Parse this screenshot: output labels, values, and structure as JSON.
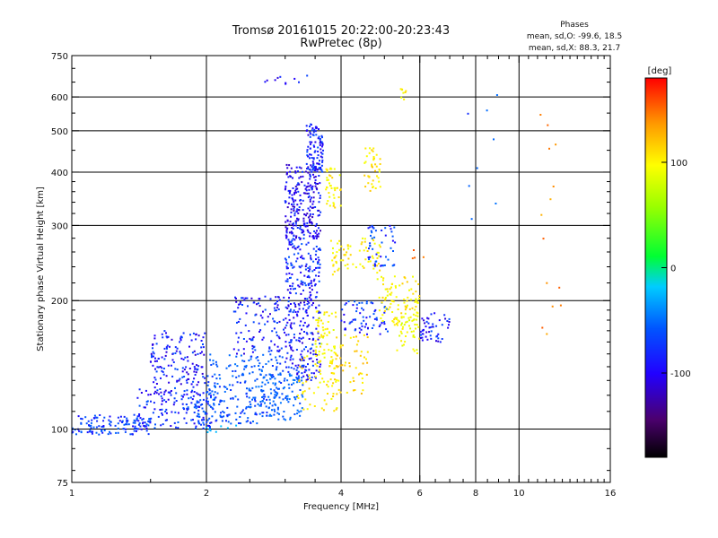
{
  "chart_data": {
    "type": "scatter",
    "title_line1": "Tromsø 20161015 20:22:00-20:23:43",
    "title_line2": "RwPretec (8p)",
    "xlabel": "Frequency [MHz]",
    "ylabel": "Stationary phase Virtual Height [km]",
    "x_scale": "log",
    "y_scale": "log",
    "xlim": [
      1,
      16
    ],
    "ylim": [
      75,
      750
    ],
    "x_ticks": [
      1,
      2,
      4,
      6,
      8,
      10,
      16
    ],
    "x_tick_labels": [
      "1",
      "2",
      "4",
      "6",
      "8",
      "10",
      "16"
    ],
    "x_major_grid": [
      2,
      4,
      6,
      8,
      10
    ],
    "y_ticks": [
      75,
      100,
      200,
      300,
      400,
      500,
      600,
      750
    ],
    "y_tick_labels": [
      "75",
      "100",
      "200",
      "300",
      "400",
      "500",
      "600",
      "750"
    ],
    "y_major_grid": [
      100,
      200,
      300,
      400,
      500,
      600
    ],
    "grid": true,
    "phases_legend": {
      "title": "Phases",
      "line1": "mean, sd,O: -99.6, 18.5",
      "line2": "mean, sd,X:  88.3, 21.7"
    },
    "colorbar": {
      "label": "[deg]",
      "range": [
        -180,
        180
      ],
      "ticks": [
        100,
        0,
        -100
      ],
      "tick_labels": [
        "100",
        "0",
        "-100"
      ]
    },
    "clusters": [
      {
        "x": [
          1.0,
          1.5
        ],
        "y": [
          97,
          108
        ],
        "phase": -100,
        "n": 130
      },
      {
        "x": [
          1.4,
          2.1
        ],
        "y": [
          100,
          125
        ],
        "phase": -105,
        "n": 130
      },
      {
        "x": [
          1.5,
          2.0
        ],
        "y": [
          120,
          170
        ],
        "phase": -110,
        "n": 160
      },
      {
        "x": [
          1.8,
          2.9
        ],
        "y": [
          103,
          118
        ],
        "phase": -95,
        "n": 120
      },
      {
        "x": [
          2.0,
          3.0
        ],
        "y": [
          118,
          150
        ],
        "phase": -90,
        "n": 140
      },
      {
        "x": [
          2.3,
          3.1
        ],
        "y": [
          150,
          205
        ],
        "phase": -110,
        "n": 120
      },
      {
        "x": [
          2.6,
          3.3
        ],
        "y": [
          105,
          135
        ],
        "phase": -85,
        "n": 100
      },
      {
        "x": [
          3.0,
          3.6
        ],
        "y": [
          130,
          200
        ],
        "phase": -110,
        "n": 170
      },
      {
        "x": [
          3.0,
          3.6
        ],
        "y": [
          200,
          280
        ],
        "phase": -108,
        "n": 150
      },
      {
        "x": [
          3.0,
          3.6
        ],
        "y": [
          280,
          420
        ],
        "phase": -115,
        "n": 240
      },
      {
        "x": [
          3.35,
          3.65
        ],
        "y": [
          400,
          520
        ],
        "phase": -108,
        "n": 100
      },
      {
        "x": [
          3.5,
          3.9
        ],
        "y": [
          140,
          190
        ],
        "phase": 95,
        "n": 60
      },
      {
        "x": [
          3.2,
          4.0
        ],
        "y": [
          110,
          150
        ],
        "phase": 100,
        "n": 60
      },
      {
        "x": [
          3.8,
          4.6
        ],
        "y": [
          120,
          170
        ],
        "phase": 110,
        "n": 60
      },
      {
        "x": [
          3.8,
          4.9
        ],
        "y": [
          230,
          280
        ],
        "phase": 100,
        "n": 70
      },
      {
        "x": [
          3.7,
          4.0
        ],
        "y": [
          330,
          410
        ],
        "phase": 100,
        "n": 40
      },
      {
        "x": [
          4.5,
          4.9
        ],
        "y": [
          360,
          460
        ],
        "phase": 105,
        "n": 40
      },
      {
        "x": [
          4.0,
          5.1
        ],
        "y": [
          165,
          200
        ],
        "phase": -105,
        "n": 70
      },
      {
        "x": [
          4.6,
          5.3
        ],
        "y": [
          240,
          300
        ],
        "phase": -100,
        "n": 50
      },
      {
        "x": [
          4.8,
          6.0
        ],
        "y": [
          175,
          230
        ],
        "phase": 100,
        "n": 100
      },
      {
        "x": [
          5.3,
          6.0
        ],
        "y": [
          150,
          185
        ],
        "phase": 90,
        "n": 40
      },
      {
        "x": [
          6.0,
          7.0
        ],
        "y": [
          160,
          190
        ],
        "phase": -110,
        "n": 50
      },
      {
        "x": [
          2.7,
          3.4
        ],
        "y": [
          640,
          680
        ],
        "phase": -110,
        "n": 10
      },
      {
        "x": [
          5.4,
          5.6
        ],
        "y": [
          590,
          630
        ],
        "phase": 100,
        "n": 8
      },
      {
        "x": [
          11.0,
          12.5
        ],
        "y": [
          160,
          600
        ],
        "phase": 140,
        "n": 14
      },
      {
        "x": [
          7.6,
          9.0
        ],
        "y": [
          300,
          620
        ],
        "phase": -90,
        "n": 8
      },
      {
        "x": [
          2.0,
          2.5
        ],
        "y": [
          95,
          102
        ],
        "phase": -40,
        "n": 8
      },
      {
        "x": [
          5.7,
          6.2
        ],
        "y": [
          250,
          290
        ],
        "phase": 150,
        "n": 4
      }
    ]
  }
}
